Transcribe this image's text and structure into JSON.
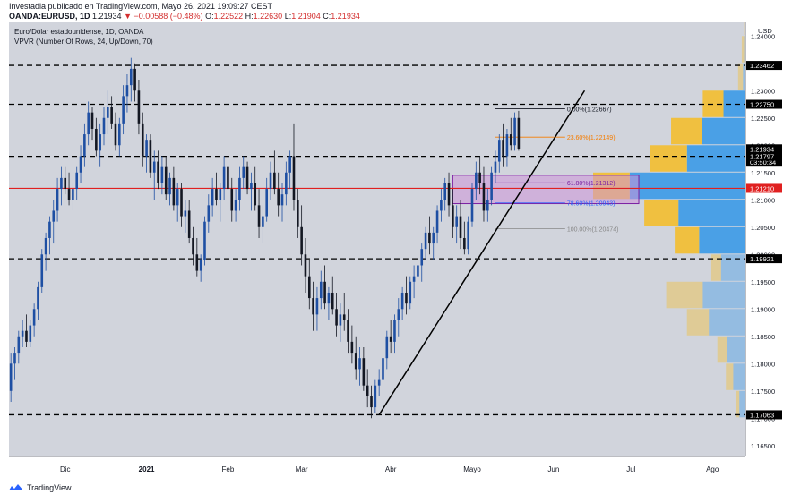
{
  "header": {
    "line1": "Investadia publicado en TradingView.com, Mayo 26, 2021 19:09:27 CEST",
    "line2_symbol": "OANDA:EURUSD, 1D",
    "line2_last": "1.21934",
    "line2_change": "▼ −0.00588 (−0.48%)",
    "o_label": "O:",
    "o": "1.22522",
    "h_label": "H:",
    "h": "1.22630",
    "l_label": "L:",
    "l": "1.21904",
    "c_label": "C:",
    "c": "1.21934"
  },
  "overlay": {
    "title": "Euro/Dólar estadounidense, 1D, OANDA",
    "indicator": "VPVR (Number Of Rows, 24, Up/Down, 70)"
  },
  "footer": {
    "brand": "TradingView"
  },
  "colors": {
    "up": "#1e4fa3",
    "down": "#131722",
    "bg": "#d1d4dc",
    "vp_up": "#4aa0e6",
    "vp_down": "#f0c040",
    "hline": "#000000",
    "red_line": "#e02020",
    "fib_orange": "#f57c00",
    "fib_purple": "#7b1fa2",
    "fib_blue": "#2962ff",
    "fib_gray": "#888888"
  },
  "chart_data": {
    "type": "candlestick",
    "y_axis_label": "USD",
    "ylim": [
      1.163,
      1.2425
    ],
    "y_ticks": [
      "1.24000",
      "1.23500",
      "1.23000",
      "1.22500",
      "1.22000",
      "1.21500",
      "1.21000",
      "1.20500",
      "1.20000",
      "1.19500",
      "1.19000",
      "1.18500",
      "1.18000",
      "1.17500",
      "1.17000",
      "1.16500"
    ],
    "x_ticks": [
      "Dic",
      "2021",
      "Feb",
      "Mar",
      "Abr",
      "Mayo",
      "Jun",
      "Jul",
      "Ago"
    ],
    "x_tick_index": [
      14,
      35,
      56,
      75,
      98,
      119,
      140,
      160,
      181
    ],
    "n_slots": 190,
    "price_labels": [
      {
        "value": 1.23462,
        "text": "1.23462",
        "style": "black"
      },
      {
        "value": 1.2275,
        "text": "1.22750",
        "style": "black"
      },
      {
        "value": 1.21934,
        "text": "1.21934",
        "style": "black"
      },
      {
        "value": 1.2169,
        "text": "03:50:34",
        "style": "black"
      },
      {
        "value": 1.21797,
        "text": "1.21797",
        "style": "black"
      },
      {
        "value": 1.2121,
        "text": "1.21210",
        "style": "red"
      },
      {
        "value": 1.19921,
        "text": "1.19921",
        "style": "black"
      },
      {
        "value": 1.17063,
        "text": "1.17063",
        "style": "black"
      }
    ],
    "horizontal_levels": [
      1.23462,
      1.2275,
      1.21797,
      1.19921,
      1.17063
    ],
    "red_level": 1.2121,
    "fibonacci": {
      "start_index": 125,
      "end_index": 143,
      "levels": [
        {
          "value": 1.22667,
          "text": "0.00%(1.22667)",
          "color": "#131722"
        },
        {
          "value": 1.22149,
          "text": "23.60%(1.22149)",
          "color": "#f57c00"
        },
        {
          "value": 1.21312,
          "text": "61.80%(1.21312)",
          "color": "#7b1fa2"
        },
        {
          "value": 1.20943,
          "text": "78.60%(1.20943)",
          "color": "#2962ff"
        },
        {
          "value": 1.20474,
          "text": "100.00%(1.20474)",
          "color": "#888888"
        }
      ]
    },
    "box": {
      "x0": 114,
      "x1": 162,
      "y0": 1.2093,
      "y1": 1.2145
    },
    "trendline": {
      "x0": 95,
      "y0": 1.17063,
      "x1": 148,
      "y1": 1.23
    },
    "volume_profile": [
      {
        "low": 1.24,
        "up": 0.0,
        "down": 0.01
      },
      {
        "low": 1.235,
        "up": 0.01,
        "down": 0.02
      },
      {
        "low": 1.23,
        "up": 0.02,
        "down": 0.04
      },
      {
        "low": 1.225,
        "up": 0.18,
        "down": 0.17
      },
      {
        "low": 1.22,
        "up": 0.36,
        "down": 0.25
      },
      {
        "low": 1.215,
        "up": 0.48,
        "down": 0.3
      },
      {
        "low": 1.21,
        "up": 0.95,
        "down": 0.3
      },
      {
        "low": 1.205,
        "up": 0.55,
        "down": 0.28
      },
      {
        "low": 1.2,
        "up": 0.38,
        "down": 0.2
      },
      {
        "low": 1.195,
        "up": 0.2,
        "down": 0.08
      },
      {
        "low": 1.19,
        "up": 0.35,
        "down": 0.3
      },
      {
        "low": 1.185,
        "up": 0.3,
        "down": 0.18
      },
      {
        "low": 1.18,
        "up": 0.15,
        "down": 0.08
      },
      {
        "low": 1.175,
        "up": 0.1,
        "down": 0.06
      },
      {
        "low": 1.17,
        "up": 0.05,
        "down": 0.03
      }
    ],
    "candles": [
      [
        1.175,
        1.182,
        1.173,
        1.18
      ],
      [
        1.18,
        1.183,
        1.177,
        1.182
      ],
      [
        1.182,
        1.186,
        1.18,
        1.185
      ],
      [
        1.185,
        1.188,
        1.183,
        1.186
      ],
      [
        1.186,
        1.189,
        1.183,
        1.184
      ],
      [
        1.184,
        1.188,
        1.183,
        1.187
      ],
      [
        1.187,
        1.191,
        1.185,
        1.19
      ],
      [
        1.19,
        1.195,
        1.188,
        1.194
      ],
      [
        1.194,
        1.201,
        1.193,
        1.2
      ],
      [
        1.2,
        1.204,
        1.197,
        1.203
      ],
      [
        1.203,
        1.207,
        1.2,
        1.206
      ],
      [
        1.206,
        1.21,
        1.202,
        1.208
      ],
      [
        1.208,
        1.214,
        1.206,
        1.212
      ],
      [
        1.212,
        1.216,
        1.209,
        1.214
      ],
      [
        1.214,
        1.216,
        1.211,
        1.212
      ],
      [
        1.212,
        1.215,
        1.209,
        1.21
      ],
      [
        1.21,
        1.213,
        1.208,
        1.212
      ],
      [
        1.212,
        1.216,
        1.21,
        1.215
      ],
      [
        1.215,
        1.22,
        1.213,
        1.218
      ],
      [
        1.218,
        1.224,
        1.216,
        1.222
      ],
      [
        1.222,
        1.228,
        1.22,
        1.226
      ],
      [
        1.226,
        1.227,
        1.221,
        1.223
      ],
      [
        1.223,
        1.225,
        1.218,
        1.219
      ],
      [
        1.219,
        1.224,
        1.216,
        1.222
      ],
      [
        1.222,
        1.227,
        1.22,
        1.225
      ],
      [
        1.225,
        1.23,
        1.222,
        1.227
      ],
      [
        1.227,
        1.229,
        1.223,
        1.224
      ],
      [
        1.224,
        1.226,
        1.219,
        1.22
      ],
      [
        1.22,
        1.225,
        1.218,
        1.224
      ],
      [
        1.224,
        1.231,
        1.222,
        1.229
      ],
      [
        1.229,
        1.233,
        1.226,
        1.231
      ],
      [
        1.231,
        1.236,
        1.228,
        1.234
      ],
      [
        1.234,
        1.235,
        1.228,
        1.23
      ],
      [
        1.23,
        1.232,
        1.222,
        1.224
      ],
      [
        1.224,
        1.226,
        1.216,
        1.218
      ],
      [
        1.218,
        1.222,
        1.215,
        1.221
      ],
      [
        1.221,
        1.222,
        1.214,
        1.215
      ],
      [
        1.215,
        1.219,
        1.21,
        1.217
      ],
      [
        1.217,
        1.219,
        1.212,
        1.213
      ],
      [
        1.213,
        1.218,
        1.211,
        1.216
      ],
      [
        1.216,
        1.218,
        1.21,
        1.211
      ],
      [
        1.211,
        1.215,
        1.209,
        1.214
      ],
      [
        1.214,
        1.216,
        1.208,
        1.209
      ],
      [
        1.209,
        1.213,
        1.206,
        1.212
      ],
      [
        1.212,
        1.213,
        1.205,
        1.207
      ],
      [
        1.207,
        1.21,
        1.204,
        1.208
      ],
      [
        1.208,
        1.21,
        1.202,
        1.203
      ],
      [
        1.203,
        1.205,
        1.198,
        1.2
      ],
      [
        1.2,
        1.203,
        1.196,
        1.197
      ],
      [
        1.197,
        1.2,
        1.195,
        1.199
      ],
      [
        1.199,
        1.207,
        1.198,
        1.206
      ],
      [
        1.206,
        1.211,
        1.204,
        1.209
      ],
      [
        1.209,
        1.214,
        1.207,
        1.212
      ],
      [
        1.212,
        1.215,
        1.209,
        1.21
      ],
      [
        1.21,
        1.213,
        1.206,
        1.212
      ],
      [
        1.212,
        1.218,
        1.21,
        1.216
      ],
      [
        1.216,
        1.218,
        1.211,
        1.212
      ],
      [
        1.212,
        1.214,
        1.206,
        1.208
      ],
      [
        1.208,
        1.212,
        1.206,
        1.21
      ],
      [
        1.21,
        1.216,
        1.208,
        1.214
      ],
      [
        1.214,
        1.218,
        1.212,
        1.216
      ],
      [
        1.216,
        1.217,
        1.211,
        1.212
      ],
      [
        1.212,
        1.215,
        1.208,
        1.213
      ],
      [
        1.213,
        1.216,
        1.208,
        1.209
      ],
      [
        1.209,
        1.212,
        1.203,
        1.205
      ],
      [
        1.205,
        1.209,
        1.202,
        1.207
      ],
      [
        1.207,
        1.214,
        1.206,
        1.212
      ],
      [
        1.212,
        1.217,
        1.21,
        1.215
      ],
      [
        1.215,
        1.219,
        1.211,
        1.212
      ],
      [
        1.212,
        1.215,
        1.207,
        1.209
      ],
      [
        1.209,
        1.213,
        1.206,
        1.211
      ],
      [
        1.211,
        1.217,
        1.209,
        1.215
      ],
      [
        1.215,
        1.219,
        1.212,
        1.218
      ],
      [
        1.218,
        1.224,
        1.208,
        1.21
      ],
      [
        1.21,
        1.212,
        1.203,
        1.205
      ],
      [
        1.205,
        1.209,
        1.198,
        1.2
      ],
      [
        1.2,
        1.203,
        1.193,
        1.196
      ],
      [
        1.196,
        1.199,
        1.19,
        1.192
      ],
      [
        1.192,
        1.195,
        1.186,
        1.189
      ],
      [
        1.189,
        1.194,
        1.186,
        1.192
      ],
      [
        1.192,
        1.197,
        1.19,
        1.195
      ],
      [
        1.195,
        1.198,
        1.19,
        1.191
      ],
      [
        1.191,
        1.194,
        1.188,
        1.193
      ],
      [
        1.193,
        1.196,
        1.189,
        1.19
      ],
      [
        1.19,
        1.193,
        1.185,
        1.187
      ],
      [
        1.187,
        1.191,
        1.184,
        1.189
      ],
      [
        1.189,
        1.193,
        1.186,
        1.188
      ],
      [
        1.188,
        1.19,
        1.182,
        1.184
      ],
      [
        1.184,
        1.187,
        1.18,
        1.182
      ],
      [
        1.182,
        1.185,
        1.177,
        1.179
      ],
      [
        1.179,
        1.183,
        1.176,
        1.181
      ],
      [
        1.181,
        1.183,
        1.175,
        1.176
      ],
      [
        1.176,
        1.179,
        1.172,
        1.174
      ],
      [
        1.174,
        1.176,
        1.17,
        1.172
      ],
      [
        1.172,
        1.177,
        1.171,
        1.176
      ],
      [
        1.176,
        1.179,
        1.174,
        1.177
      ],
      [
        1.177,
        1.182,
        1.175,
        1.181
      ],
      [
        1.181,
        1.186,
        1.179,
        1.185
      ],
      [
        1.185,
        1.188,
        1.182,
        1.184
      ],
      [
        1.184,
        1.189,
        1.182,
        1.188
      ],
      [
        1.188,
        1.192,
        1.185,
        1.19
      ],
      [
        1.19,
        1.194,
        1.188,
        1.193
      ],
      [
        1.193,
        1.196,
        1.189,
        1.191
      ],
      [
        1.191,
        1.196,
        1.19,
        1.195
      ],
      [
        1.195,
        1.198,
        1.192,
        1.196
      ],
      [
        1.196,
        1.199,
        1.193,
        1.198
      ],
      [
        1.198,
        1.202,
        1.195,
        1.201
      ],
      [
        1.201,
        1.205,
        1.199,
        1.204
      ],
      [
        1.204,
        1.207,
        1.2,
        1.202
      ],
      [
        1.202,
        1.205,
        1.199,
        1.204
      ],
      [
        1.204,
        1.209,
        1.202,
        1.208
      ],
      [
        1.208,
        1.212,
        1.206,
        1.21
      ],
      [
        1.21,
        1.214,
        1.208,
        1.213
      ],
      [
        1.213,
        1.215,
        1.207,
        1.209
      ],
      [
        1.209,
        1.212,
        1.203,
        1.205
      ],
      [
        1.205,
        1.209,
        1.202,
        1.207
      ],
      [
        1.207,
        1.21,
        1.201,
        1.203
      ],
      [
        1.203,
        1.206,
        1.2,
        1.201
      ],
      [
        1.201,
        1.207,
        1.2,
        1.206
      ],
      [
        1.206,
        1.213,
        1.205,
        1.212
      ],
      [
        1.212,
        1.217,
        1.21,
        1.215
      ],
      [
        1.215,
        1.218,
        1.211,
        1.213
      ],
      [
        1.213,
        1.216,
        1.206,
        1.208
      ],
      [
        1.208,
        1.212,
        1.206,
        1.21
      ],
      [
        1.21,
        1.216,
        1.209,
        1.215
      ],
      [
        1.215,
        1.219,
        1.213,
        1.217
      ],
      [
        1.217,
        1.222,
        1.215,
        1.221
      ],
      [
        1.221,
        1.224,
        1.216,
        1.218
      ],
      [
        1.218,
        1.223,
        1.216,
        1.222
      ],
      [
        1.222,
        1.225,
        1.219,
        1.22
      ],
      [
        1.22,
        1.226,
        1.219,
        1.225
      ],
      [
        1.225,
        1.2263,
        1.219,
        1.2193
      ]
    ]
  }
}
